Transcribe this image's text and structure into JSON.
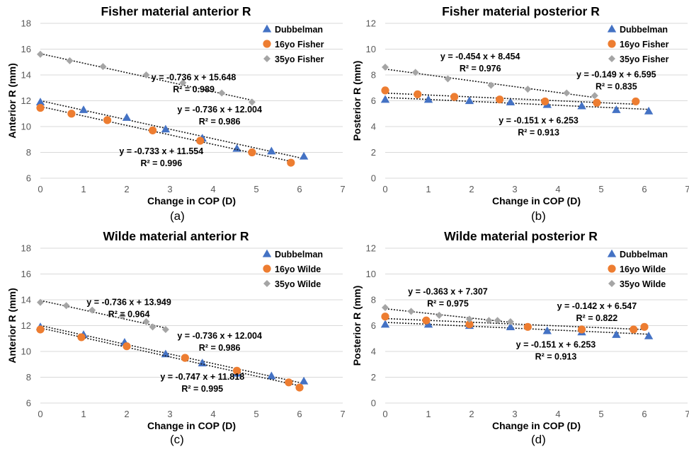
{
  "colors": {
    "dubbelman": "#4472c4",
    "young": "#ed7d31",
    "old": "#a5a5a5",
    "grid": "#d9d9d9",
    "text": "#000000",
    "tick": "#595959"
  },
  "chart_data": [
    {
      "type": "scatter",
      "panel_label": "(a)",
      "title": "Fisher material anterior R",
      "xlabel": "Change in COP (D)",
      "ylabel": "Anterior R (mm)",
      "xlim": [
        0,
        7
      ],
      "ylim": [
        6,
        18
      ],
      "xstep": 1,
      "ystep": 2,
      "x_ticks": [
        "0",
        "1",
        "2",
        "3",
        "4",
        "5",
        "6",
        "7"
      ],
      "y_ticks": [
        "6",
        "8",
        "10",
        "12",
        "14",
        "16",
        "18"
      ],
      "grid": "horizontal",
      "legend": "top-right",
      "series": [
        {
          "name": "Dubbelman",
          "marker": "triangle",
          "color": "#4472c4",
          "x": [
            0,
            1,
            2,
            2.9,
            3.75,
            4.55,
            5.35,
            6.1
          ],
          "y": [
            11.9,
            11.3,
            10.7,
            9.8,
            9.1,
            8.3,
            8.1,
            7.7
          ],
          "trend": {
            "slope": -0.736,
            "intercept": 12.004,
            "x_range": [
              0,
              6.1
            ],
            "equation": "y = -0.736 x + 12.004",
            "r2": "R² = 0.986",
            "label_x": 4.15,
            "label_y": 11.1
          }
        },
        {
          "name": "16yo Fisher",
          "marker": "circle",
          "color": "#ed7d31",
          "x": [
            0,
            0.72,
            1.55,
            2.6,
            3.7,
            4.9,
            5.8
          ],
          "y": [
            11.45,
            11.0,
            10.5,
            9.7,
            8.9,
            8.0,
            7.2
          ],
          "trend": {
            "slope": -0.733,
            "intercept": 11.554,
            "x_range": [
              0,
              5.8
            ],
            "equation": "y = -0.733 x + 11.554",
            "r2": "R² = 0.996",
            "label_x": 2.8,
            "label_y": 7.85
          }
        },
        {
          "name": "35yo Fisher",
          "marker": "diamond",
          "color": "#a5a5a5",
          "x": [
            0,
            0.68,
            1.45,
            2.45,
            3.3,
            4.2,
            4.9
          ],
          "y": [
            15.6,
            15.1,
            14.65,
            14.0,
            13.4,
            12.6,
            11.9
          ],
          "trend": {
            "slope": -0.736,
            "intercept": 15.648,
            "x_range": [
              0,
              4.9
            ],
            "equation": "y = -0.736 x + 15.648",
            "r2": "R² = 0.989",
            "label_x": 3.55,
            "label_y": 13.6
          }
        }
      ]
    },
    {
      "type": "scatter",
      "panel_label": "(b)",
      "title": "Fisher material posterior R",
      "xlabel": "Change in COP (D)",
      "ylabel": "Posterior R (mm)",
      "xlim": [
        0,
        7
      ],
      "ylim": [
        0,
        12
      ],
      "xstep": 1,
      "ystep": 2,
      "x_ticks": [
        "0",
        "1",
        "2",
        "3",
        "4",
        "5",
        "6",
        "7"
      ],
      "y_ticks": [
        "0",
        "2",
        "4",
        "6",
        "8",
        "10",
        "12"
      ],
      "grid": "horizontal",
      "legend": "top-right",
      "series": [
        {
          "name": "Dubbelman",
          "marker": "triangle",
          "color": "#4472c4",
          "x": [
            0,
            1,
            1.95,
            2.9,
            3.75,
            4.55,
            5.35,
            6.1
          ],
          "y": [
            6.1,
            6.1,
            6.0,
            5.9,
            5.7,
            5.6,
            5.3,
            5.2
          ],
          "trend": {
            "slope": -0.151,
            "intercept": 6.253,
            "x_range": [
              0,
              6.1
            ],
            "equation": "y = -0.151 x + 6.253",
            "r2": "R² = 0.913",
            "label_x": 3.55,
            "label_y": 4.25
          }
        },
        {
          "name": "16yo Fisher",
          "marker": "circle",
          "color": "#ed7d31",
          "x": [
            0,
            0.75,
            1.6,
            2.65,
            3.7,
            4.9,
            5.8
          ],
          "y": [
            6.8,
            6.5,
            6.3,
            6.1,
            5.95,
            5.85,
            5.95
          ],
          "trend": {
            "slope": -0.149,
            "intercept": 6.595,
            "x_range": [
              0,
              5.8
            ],
            "equation": "y = -0.149 x + 6.595",
            "r2": "R² = 0.835",
            "label_x": 5.35,
            "label_y": 7.8
          }
        },
        {
          "name": "35yo Fisher",
          "marker": "diamond",
          "color": "#a5a5a5",
          "x": [
            0,
            0.7,
            1.45,
            2.45,
            3.3,
            4.2,
            4.85
          ],
          "y": [
            8.6,
            8.2,
            7.7,
            7.2,
            6.9,
            6.6,
            6.4
          ],
          "trend": {
            "slope": -0.454,
            "intercept": 8.454,
            "x_range": [
              0,
              4.85
            ],
            "equation": "y = -0.454 x + 8.454",
            "r2": "R² = 0.976",
            "label_x": 2.2,
            "label_y": 9.2
          }
        }
      ]
    },
    {
      "type": "scatter",
      "panel_label": "(c)",
      "title": "Wilde material anterior R",
      "xlabel": "Change in COP (D)",
      "ylabel": "Anterior R (mm)",
      "xlim": [
        0,
        7
      ],
      "ylim": [
        6,
        18
      ],
      "xstep": 1,
      "ystep": 2,
      "x_ticks": [
        "0",
        "1",
        "2",
        "3",
        "4",
        "5",
        "6",
        "7"
      ],
      "y_ticks": [
        "6",
        "8",
        "10",
        "12",
        "14",
        "16",
        "18"
      ],
      "grid": "horizontal",
      "legend": "top-right",
      "series": [
        {
          "name": "Dubbelman",
          "marker": "triangle",
          "color": "#4472c4",
          "x": [
            0,
            1,
            1.95,
            2.9,
            3.75,
            4.55,
            5.35,
            6.1
          ],
          "y": [
            11.9,
            11.3,
            10.7,
            9.8,
            9.1,
            8.3,
            8.1,
            7.7
          ],
          "trend": {
            "slope": -0.736,
            "intercept": 12.004,
            "x_range": [
              0,
              6.1
            ],
            "equation": "y = -0.736 x + 12.004",
            "r2": "R² = 0.986",
            "label_x": 4.15,
            "label_y": 11.0
          }
        },
        {
          "name": "16yo Wilde",
          "marker": "circle",
          "color": "#ed7d31",
          "x": [
            0,
            0.95,
            2.0,
            3.35,
            4.55,
            5.75,
            6.0
          ],
          "y": [
            11.7,
            11.1,
            10.4,
            9.5,
            8.5,
            7.6,
            7.2
          ],
          "trend": {
            "slope": -0.747,
            "intercept": 11.818,
            "x_range": [
              0,
              6.0
            ],
            "equation": "y = -0.747 x + 11.818",
            "r2": "R² = 0.995",
            "label_x": 3.75,
            "label_y": 7.8
          }
        },
        {
          "name": "35yo Wilde",
          "marker": "diamond",
          "color": "#a5a5a5",
          "x": [
            0,
            0.6,
            1.2,
            1.9,
            2.45,
            2.6,
            2.9
          ],
          "y": [
            13.8,
            13.55,
            13.2,
            12.75,
            12.3,
            11.9,
            11.7
          ],
          "trend": {
            "slope": -0.736,
            "intercept": 13.949,
            "x_range": [
              0,
              2.9
            ],
            "equation": "y = -0.736 x + 13.949",
            "r2": "R² = 0.964",
            "label_x": 2.05,
            "label_y": 13.6
          }
        }
      ]
    },
    {
      "type": "scatter",
      "panel_label": "(d)",
      "title": "Wilde material posterior R",
      "xlabel": "Change in COP (D)",
      "ylabel": "Posterior R (mm)",
      "xlim": [
        0,
        7
      ],
      "ylim": [
        0,
        12
      ],
      "xstep": 1,
      "ystep": 2,
      "x_ticks": [
        "0",
        "1",
        "2",
        "3",
        "4",
        "5",
        "6",
        "7"
      ],
      "y_ticks": [
        "0",
        "2",
        "4",
        "6",
        "8",
        "10",
        "12"
      ],
      "grid": "horizontal",
      "legend": "top-right",
      "series": [
        {
          "name": "Dubbelman",
          "marker": "triangle",
          "color": "#4472c4",
          "x": [
            0,
            1,
            1.95,
            2.9,
            3.75,
            4.55,
            5.35,
            6.1
          ],
          "y": [
            6.1,
            6.1,
            6.0,
            5.9,
            5.6,
            5.5,
            5.3,
            5.2
          ],
          "trend": {
            "slope": -0.151,
            "intercept": 6.253,
            "x_range": [
              0,
              6.1
            ],
            "equation": "y = -0.151 x + 6.253",
            "r2": "R² = 0.913",
            "label_x": 3.95,
            "label_y": 4.3
          }
        },
        {
          "name": "16yo Wilde",
          "marker": "circle",
          "color": "#ed7d31",
          "x": [
            0,
            0.95,
            1.95,
            3.3,
            4.55,
            5.75,
            6.0
          ],
          "y": [
            6.7,
            6.4,
            6.1,
            5.9,
            5.7,
            5.7,
            5.9
          ],
          "trend": {
            "slope": -0.142,
            "intercept": 6.547,
            "x_range": [
              0,
              6.0
            ],
            "equation": "y = -0.142 x + 6.547",
            "r2": "R² = 0.822",
            "label_x": 4.9,
            "label_y": 7.3
          }
        },
        {
          "name": "35yo Wilde",
          "marker": "diamond",
          "color": "#a5a5a5",
          "x": [
            0,
            0.6,
            1.25,
            1.95,
            2.4,
            2.6,
            2.9
          ],
          "y": [
            7.4,
            7.1,
            6.8,
            6.5,
            6.4,
            6.4,
            6.3
          ],
          "trend": {
            "slope": -0.363,
            "intercept": 7.307,
            "x_range": [
              0,
              2.9
            ],
            "equation": "y = -0.363 x + 7.307",
            "r2": "R² = 0.975",
            "label_x": 1.45,
            "label_y": 8.4
          }
        }
      ]
    }
  ]
}
